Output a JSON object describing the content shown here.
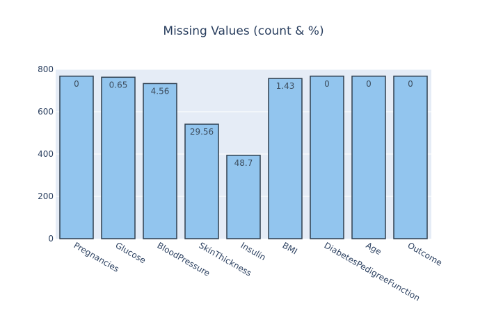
{
  "chart_data": {
    "type": "bar",
    "title": "Missing Values (count & %)",
    "categories": [
      "Pregnancies",
      "Glucose",
      "BloodPressure",
      "SkinThickness",
      "Insulin",
      "BMI",
      "DiabetesPedigreeFunction",
      "Age",
      "Outcome"
    ],
    "values": [
      768,
      763,
      733,
      541,
      394,
      757,
      768,
      768,
      768
    ],
    "data_labels": [
      "0",
      "0.65",
      "4.56",
      "29.56",
      "48.7",
      "1.43",
      "0",
      "0",
      "0"
    ],
    "ylim": [
      0,
      800
    ],
    "yticks": [
      0,
      200,
      400,
      600,
      800
    ],
    "grid": true,
    "colors": {
      "bar_fill": "#92c5ee",
      "bar_stroke": "#2f3f4f",
      "plot_bg": "#e5ecf6",
      "title": "#2a3f5f",
      "tick_text": "#2a3f5f",
      "label_text": "#3d4d5e",
      "grid": "#ffffff"
    }
  }
}
